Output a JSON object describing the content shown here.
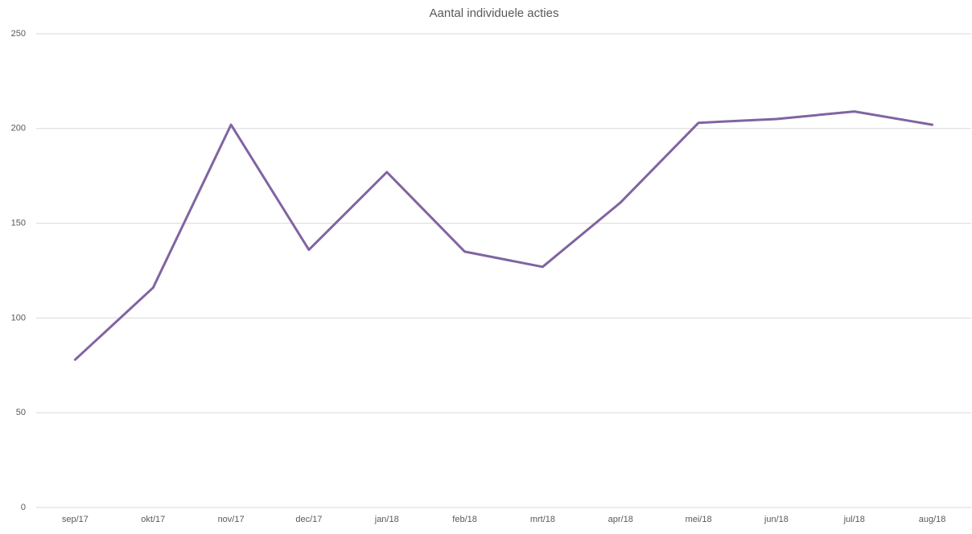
{
  "chart_data": {
    "type": "line",
    "title": "Aantal individuele acties",
    "categories": [
      "sep/17",
      "okt/17",
      "nov/17",
      "dec/17",
      "jan/18",
      "feb/18",
      "mrt/18",
      "apr/18",
      "mei/18",
      "jun/18",
      "jul/18",
      "aug/18"
    ],
    "values": [
      78,
      116,
      202,
      136,
      177,
      135,
      127,
      161,
      203,
      205,
      209,
      202
    ],
    "color": "#8064a2",
    "ylim": [
      0,
      250
    ],
    "yticks": [
      0,
      50,
      100,
      150,
      200,
      250
    ],
    "grid": true
  }
}
